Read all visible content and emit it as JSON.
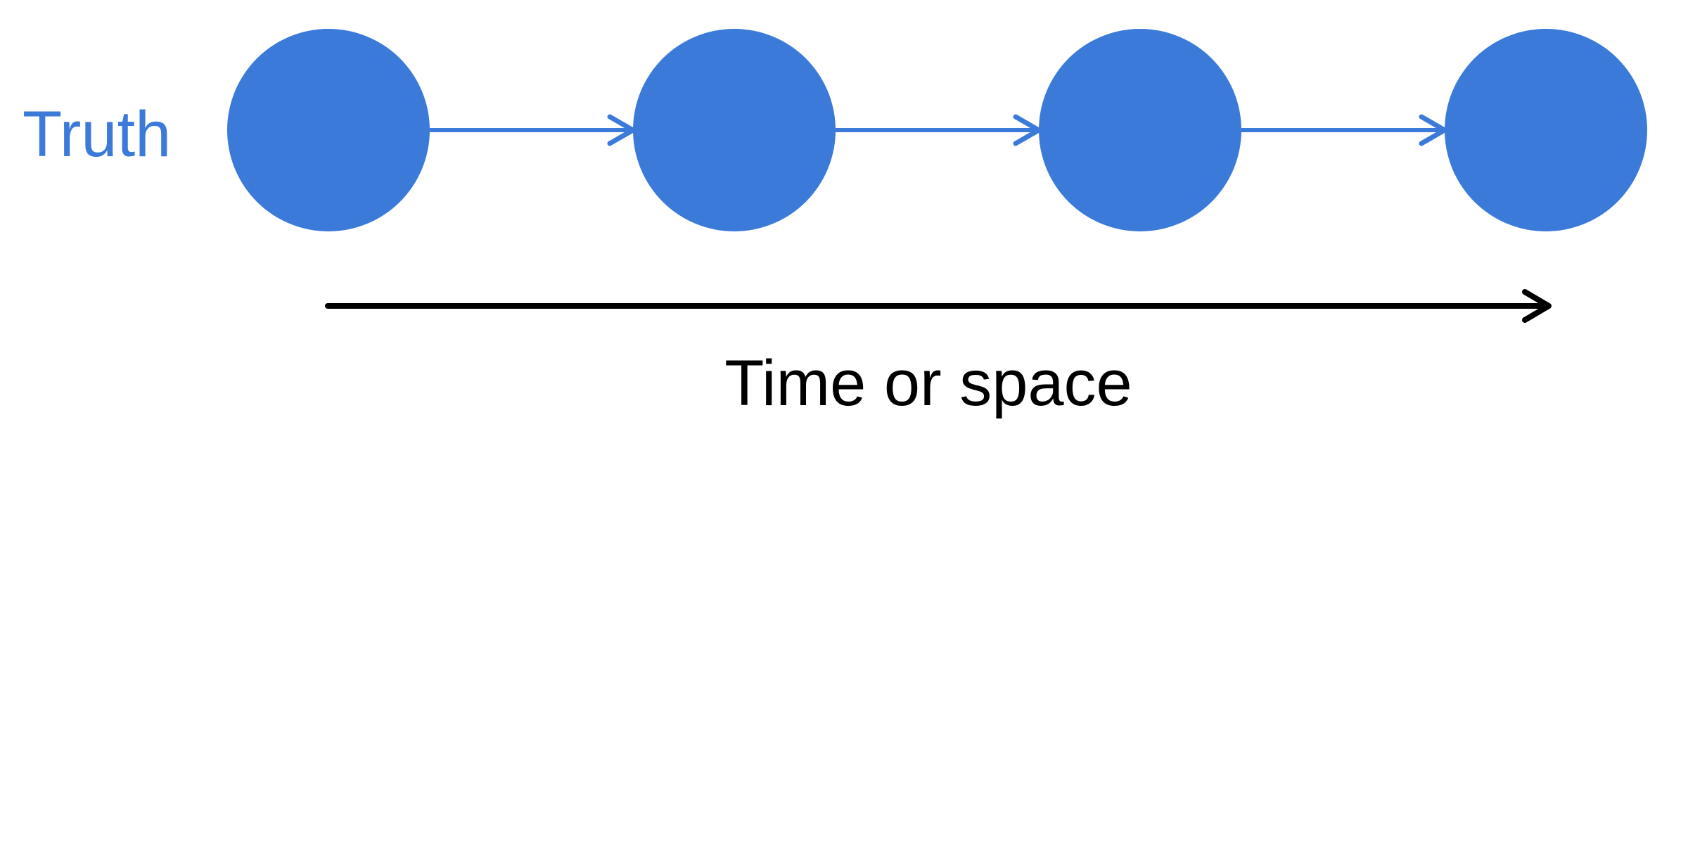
{
  "diagram": {
    "row_label": "Truth",
    "axis_label": "Time or space",
    "node_count": 4,
    "colors": {
      "node": "#3c7ada",
      "chain_arrow": "#3c7ada",
      "axis_arrow": "#000000",
      "row_label": "#3c7ada",
      "axis_label": "#000000"
    }
  }
}
